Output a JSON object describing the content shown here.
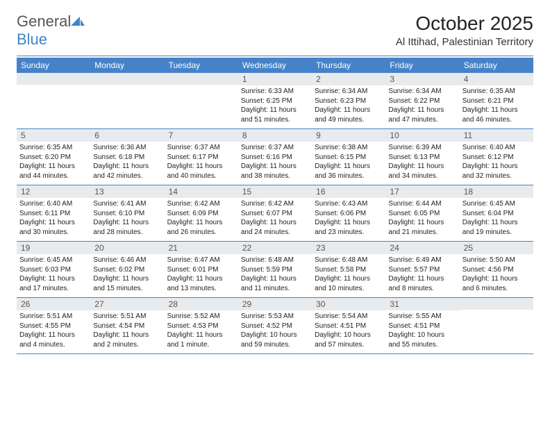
{
  "logo": {
    "word1": "General",
    "word2": "Blue",
    "word1_color": "#666666",
    "word2_color": "#3d85c6",
    "icon_color": "#3d85c6"
  },
  "header": {
    "title": "October 2025",
    "location": "Al Ittihad, Palestinian Territory",
    "title_color": "#222222",
    "title_fontsize": 28,
    "location_fontsize": 15
  },
  "styling": {
    "header_band_color": "#4682c8",
    "header_text_color": "#ffffff",
    "daynum_bg": "#e8ebee",
    "daynum_color": "#555555",
    "rule_color": "#4682c8",
    "body_fontsize": 10,
    "weekday_fontsize": 12
  },
  "weekdays": [
    "Sunday",
    "Monday",
    "Tuesday",
    "Wednesday",
    "Thursday",
    "Friday",
    "Saturday"
  ],
  "weeks": [
    [
      {
        "day": "",
        "sunrise": "",
        "sunset": "",
        "daylight": ""
      },
      {
        "day": "",
        "sunrise": "",
        "sunset": "",
        "daylight": ""
      },
      {
        "day": "",
        "sunrise": "",
        "sunset": "",
        "daylight": ""
      },
      {
        "day": "1",
        "sunrise": "Sunrise: 6:33 AM",
        "sunset": "Sunset: 6:25 PM",
        "daylight": "Daylight: 11 hours and 51 minutes."
      },
      {
        "day": "2",
        "sunrise": "Sunrise: 6:34 AM",
        "sunset": "Sunset: 6:23 PM",
        "daylight": "Daylight: 11 hours and 49 minutes."
      },
      {
        "day": "3",
        "sunrise": "Sunrise: 6:34 AM",
        "sunset": "Sunset: 6:22 PM",
        "daylight": "Daylight: 11 hours and 47 minutes."
      },
      {
        "day": "4",
        "sunrise": "Sunrise: 6:35 AM",
        "sunset": "Sunset: 6:21 PM",
        "daylight": "Daylight: 11 hours and 46 minutes."
      }
    ],
    [
      {
        "day": "5",
        "sunrise": "Sunrise: 6:35 AM",
        "sunset": "Sunset: 6:20 PM",
        "daylight": "Daylight: 11 hours and 44 minutes."
      },
      {
        "day": "6",
        "sunrise": "Sunrise: 6:36 AM",
        "sunset": "Sunset: 6:18 PM",
        "daylight": "Daylight: 11 hours and 42 minutes."
      },
      {
        "day": "7",
        "sunrise": "Sunrise: 6:37 AM",
        "sunset": "Sunset: 6:17 PM",
        "daylight": "Daylight: 11 hours and 40 minutes."
      },
      {
        "day": "8",
        "sunrise": "Sunrise: 6:37 AM",
        "sunset": "Sunset: 6:16 PM",
        "daylight": "Daylight: 11 hours and 38 minutes."
      },
      {
        "day": "9",
        "sunrise": "Sunrise: 6:38 AM",
        "sunset": "Sunset: 6:15 PM",
        "daylight": "Daylight: 11 hours and 36 minutes."
      },
      {
        "day": "10",
        "sunrise": "Sunrise: 6:39 AM",
        "sunset": "Sunset: 6:13 PM",
        "daylight": "Daylight: 11 hours and 34 minutes."
      },
      {
        "day": "11",
        "sunrise": "Sunrise: 6:40 AM",
        "sunset": "Sunset: 6:12 PM",
        "daylight": "Daylight: 11 hours and 32 minutes."
      }
    ],
    [
      {
        "day": "12",
        "sunrise": "Sunrise: 6:40 AM",
        "sunset": "Sunset: 6:11 PM",
        "daylight": "Daylight: 11 hours and 30 minutes."
      },
      {
        "day": "13",
        "sunrise": "Sunrise: 6:41 AM",
        "sunset": "Sunset: 6:10 PM",
        "daylight": "Daylight: 11 hours and 28 minutes."
      },
      {
        "day": "14",
        "sunrise": "Sunrise: 6:42 AM",
        "sunset": "Sunset: 6:09 PM",
        "daylight": "Daylight: 11 hours and 26 minutes."
      },
      {
        "day": "15",
        "sunrise": "Sunrise: 6:42 AM",
        "sunset": "Sunset: 6:07 PM",
        "daylight": "Daylight: 11 hours and 24 minutes."
      },
      {
        "day": "16",
        "sunrise": "Sunrise: 6:43 AM",
        "sunset": "Sunset: 6:06 PM",
        "daylight": "Daylight: 11 hours and 23 minutes."
      },
      {
        "day": "17",
        "sunrise": "Sunrise: 6:44 AM",
        "sunset": "Sunset: 6:05 PM",
        "daylight": "Daylight: 11 hours and 21 minutes."
      },
      {
        "day": "18",
        "sunrise": "Sunrise: 6:45 AM",
        "sunset": "Sunset: 6:04 PM",
        "daylight": "Daylight: 11 hours and 19 minutes."
      }
    ],
    [
      {
        "day": "19",
        "sunrise": "Sunrise: 6:45 AM",
        "sunset": "Sunset: 6:03 PM",
        "daylight": "Daylight: 11 hours and 17 minutes."
      },
      {
        "day": "20",
        "sunrise": "Sunrise: 6:46 AM",
        "sunset": "Sunset: 6:02 PM",
        "daylight": "Daylight: 11 hours and 15 minutes."
      },
      {
        "day": "21",
        "sunrise": "Sunrise: 6:47 AM",
        "sunset": "Sunset: 6:01 PM",
        "daylight": "Daylight: 11 hours and 13 minutes."
      },
      {
        "day": "22",
        "sunrise": "Sunrise: 6:48 AM",
        "sunset": "Sunset: 5:59 PM",
        "daylight": "Daylight: 11 hours and 11 minutes."
      },
      {
        "day": "23",
        "sunrise": "Sunrise: 6:48 AM",
        "sunset": "Sunset: 5:58 PM",
        "daylight": "Daylight: 11 hours and 10 minutes."
      },
      {
        "day": "24",
        "sunrise": "Sunrise: 6:49 AM",
        "sunset": "Sunset: 5:57 PM",
        "daylight": "Daylight: 11 hours and 8 minutes."
      },
      {
        "day": "25",
        "sunrise": "Sunrise: 5:50 AM",
        "sunset": "Sunset: 4:56 PM",
        "daylight": "Daylight: 11 hours and 6 minutes."
      }
    ],
    [
      {
        "day": "26",
        "sunrise": "Sunrise: 5:51 AM",
        "sunset": "Sunset: 4:55 PM",
        "daylight": "Daylight: 11 hours and 4 minutes."
      },
      {
        "day": "27",
        "sunrise": "Sunrise: 5:51 AM",
        "sunset": "Sunset: 4:54 PM",
        "daylight": "Daylight: 11 hours and 2 minutes."
      },
      {
        "day": "28",
        "sunrise": "Sunrise: 5:52 AM",
        "sunset": "Sunset: 4:53 PM",
        "daylight": "Daylight: 11 hours and 1 minute."
      },
      {
        "day": "29",
        "sunrise": "Sunrise: 5:53 AM",
        "sunset": "Sunset: 4:52 PM",
        "daylight": "Daylight: 10 hours and 59 minutes."
      },
      {
        "day": "30",
        "sunrise": "Sunrise: 5:54 AM",
        "sunset": "Sunset: 4:51 PM",
        "daylight": "Daylight: 10 hours and 57 minutes."
      },
      {
        "day": "31",
        "sunrise": "Sunrise: 5:55 AM",
        "sunset": "Sunset: 4:51 PM",
        "daylight": "Daylight: 10 hours and 55 minutes."
      },
      {
        "day": "",
        "sunrise": "",
        "sunset": "",
        "daylight": ""
      }
    ]
  ]
}
